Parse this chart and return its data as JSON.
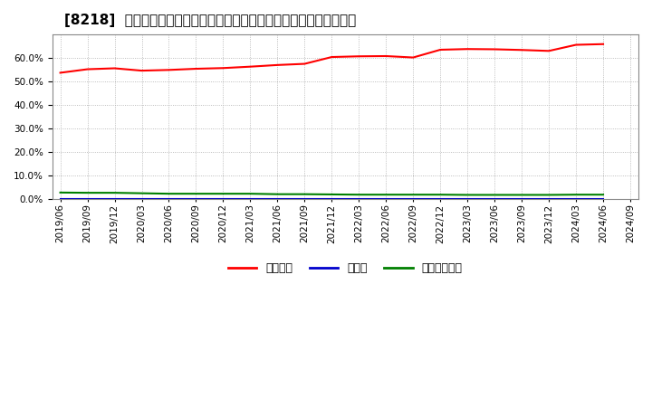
{
  "title": "[8218]  自己資本、のれん、繰延税金資産の総資産に対する比率の推移",
  "background_color": "#ffffff",
  "plot_bg_color": "#ffffff",
  "grid_color": "#aaaaaa",
  "ylim": [
    0.0,
    0.7
  ],
  "yticks": [
    0.0,
    0.1,
    0.2,
    0.3,
    0.4,
    0.5,
    0.6
  ],
  "x_labels": [
    "2019/06",
    "2019/09",
    "2019/12",
    "2020/03",
    "2020/06",
    "2020/09",
    "2020/12",
    "2021/03",
    "2021/06",
    "2021/09",
    "2021/12",
    "2022/03",
    "2022/06",
    "2022/09",
    "2022/12",
    "2023/03",
    "2023/06",
    "2023/09",
    "2023/12",
    "2024/03",
    "2024/06"
  ],
  "x_labels_extra": "2024/09",
  "series": {
    "jiko_shihon": {
      "label": "自己資本",
      "color": "#ff0000",
      "values": [
        0.537,
        0.552,
        0.556,
        0.546,
        0.549,
        0.554,
        0.557,
        0.563,
        0.57,
        0.575,
        0.604,
        0.607,
        0.608,
        0.602,
        0.635,
        0.638,
        0.637,
        0.634,
        0.63,
        0.656,
        0.659
      ]
    },
    "noren": {
      "label": "のれん",
      "color": "#0000cc",
      "values": [
        0.0,
        0.0,
        0.0,
        0.0,
        0.0,
        0.0,
        0.0,
        0.0,
        0.0,
        0.0,
        0.0,
        0.0,
        0.0,
        0.0,
        0.0,
        0.0,
        0.0,
        0.0,
        0.0,
        0.0,
        0.0
      ]
    },
    "kurinobe_zeikin": {
      "label": "繰延税金資産",
      "color": "#008000",
      "values": [
        0.027,
        0.026,
        0.026,
        0.024,
        0.022,
        0.022,
        0.022,
        0.022,
        0.02,
        0.02,
        0.019,
        0.018,
        0.018,
        0.018,
        0.018,
        0.017,
        0.017,
        0.017,
        0.017,
        0.018,
        0.018
      ]
    }
  },
  "legend_entries": [
    "自己資本",
    "のれん",
    "繰延税金資産"
  ],
  "legend_colors": [
    "#ff0000",
    "#0000cc",
    "#008000"
  ],
  "title_fontsize": 11,
  "tick_fontsize": 7.5,
  "legend_fontsize": 9
}
